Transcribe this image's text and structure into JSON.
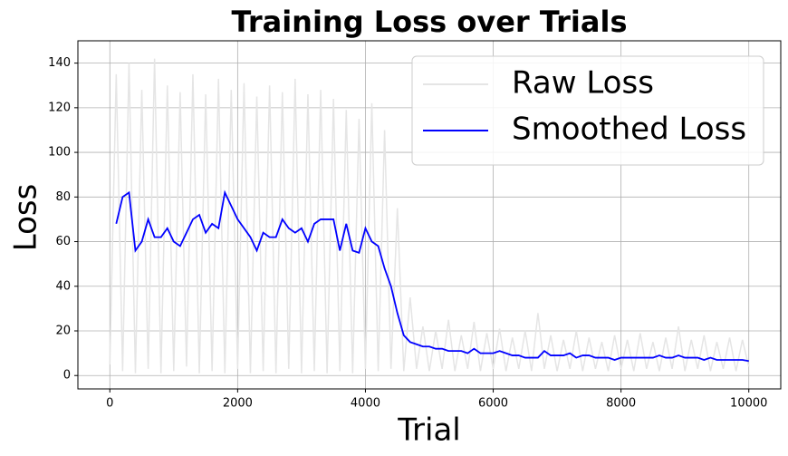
{
  "chart_data": {
    "type": "line",
    "title": "Training Loss over Trials",
    "x_label": "Trial",
    "y_label": "Loss",
    "xlim": [
      -500,
      10500
    ],
    "ylim": [
      -6,
      150
    ],
    "xticks": [
      0,
      2000,
      4000,
      6000,
      8000,
      10000
    ],
    "yticks": [
      0,
      20,
      40,
      60,
      80,
      100,
      120,
      140
    ],
    "grid": true,
    "legend_position": "upper right",
    "series": [
      {
        "name": "Raw Loss",
        "color": "#e5e5e5",
        "x": [
          0,
          100,
          200,
          300,
          400,
          500,
          600,
          700,
          800,
          900,
          1000,
          1100,
          1200,
          1300,
          1400,
          1500,
          1600,
          1700,
          1800,
          1900,
          2000,
          2100,
          2200,
          2300,
          2400,
          2500,
          2600,
          2700,
          2800,
          2900,
          3000,
          3100,
          3200,
          3300,
          3400,
          3500,
          3600,
          3700,
          3800,
          3900,
          4000,
          4100,
          4200,
          4300,
          4400,
          4500,
          4600,
          4700,
          4800,
          4900,
          5000,
          5100,
          5200,
          5300,
          5400,
          5500,
          5600,
          5700,
          5800,
          5900,
          6000,
          6100,
          6200,
          6300,
          6400,
          6500,
          6600,
          6700,
          6800,
          6900,
          7000,
          7100,
          7200,
          7300,
          7400,
          7500,
          7600,
          7700,
          7800,
          7900,
          8000,
          8100,
          8200,
          8300,
          8400,
          8500,
          8600,
          8700,
          8800,
          8900,
          9000,
          9100,
          9200,
          9300,
          9400,
          9500,
          9600,
          9700,
          9800,
          9900,
          10000
        ],
        "values": [
          5,
          135,
          2,
          140,
          1,
          128,
          3,
          142,
          1,
          130,
          2,
          127,
          4,
          135,
          1,
          126,
          2,
          133,
          1,
          128,
          3,
          131,
          1,
          125,
          2,
          130,
          1,
          127,
          3,
          133,
          1,
          126,
          2,
          128,
          1,
          124,
          2,
          119,
          1,
          115,
          3,
          122,
          2,
          110,
          3,
          75,
          2,
          35,
          3,
          22,
          2,
          20,
          3,
          25,
          2,
          18,
          3,
          24,
          2,
          19,
          3,
          21,
          2,
          17,
          3,
          20,
          2,
          28,
          3,
          18,
          2,
          16,
          3,
          20,
          2,
          17,
          3,
          15,
          2,
          18,
          3,
          16,
          2,
          19,
          3,
          15,
          2,
          17,
          3,
          22,
          2,
          16,
          3,
          18,
          2,
          15,
          3,
          17,
          2,
          16,
          4
        ]
      },
      {
        "name": "Smoothed Loss",
        "color": "#0000ff",
        "x": [
          100,
          200,
          300,
          400,
          500,
          600,
          700,
          800,
          900,
          1000,
          1100,
          1200,
          1300,
          1400,
          1500,
          1600,
          1700,
          1800,
          1900,
          2000,
          2100,
          2200,
          2300,
          2400,
          2500,
          2600,
          2700,
          2800,
          2900,
          3000,
          3100,
          3200,
          3300,
          3400,
          3500,
          3600,
          3700,
          3800,
          3900,
          4000,
          4100,
          4200,
          4300,
          4400,
          4500,
          4600,
          4700,
          4800,
          4900,
          5000,
          5100,
          5200,
          5300,
          5400,
          5500,
          5600,
          5700,
          5800,
          5900,
          6000,
          6100,
          6200,
          6300,
          6400,
          6500,
          6600,
          6700,
          6800,
          6900,
          7000,
          7100,
          7200,
          7300,
          7400,
          7500,
          7600,
          7700,
          7800,
          7900,
          8000,
          8100,
          8200,
          8300,
          8400,
          8500,
          8600,
          8700,
          8800,
          8900,
          9000,
          9100,
          9200,
          9300,
          9400,
          9500,
          9600,
          9700,
          9800,
          9900,
          10000
        ],
        "values": [
          68,
          80,
          82,
          56,
          60,
          70,
          62,
          62,
          66,
          60,
          58,
          64,
          70,
          72,
          64,
          68,
          66,
          82,
          76,
          70,
          66,
          62,
          56,
          64,
          62,
          62,
          70,
          66,
          64,
          66,
          60,
          68,
          70,
          70,
          70,
          56,
          68,
          56,
          55,
          66,
          60,
          58,
          48,
          40,
          28,
          18,
          15,
          14,
          13,
          13,
          12,
          12,
          11,
          11,
          11,
          10,
          12,
          10,
          10,
          10,
          11,
          10,
          9,
          9,
          8,
          8,
          8,
          11,
          9,
          9,
          9,
          10,
          8,
          9,
          9,
          8,
          8,
          8,
          7,
          8,
          8,
          8,
          8,
          8,
          8,
          9,
          8,
          8,
          9,
          8,
          8,
          8,
          7,
          8,
          7,
          7,
          7,
          7,
          7,
          6.5
        ]
      }
    ]
  }
}
